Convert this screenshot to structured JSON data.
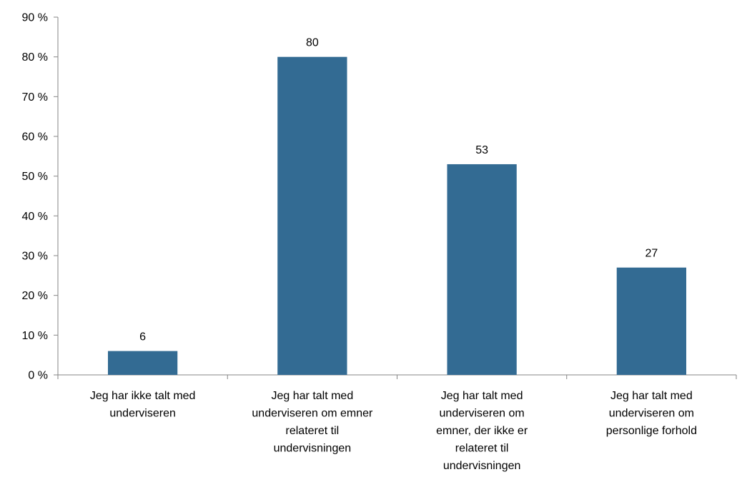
{
  "chart_data": {
    "type": "bar",
    "categories": [
      [
        "Jeg har ikke talt med",
        "underviseren"
      ],
      [
        "Jeg har talt med",
        "underviseren om emner",
        "relateret til",
        "undervisningen"
      ],
      [
        "Jeg har talt med",
        "underviseren om",
        "emner, der ikke er",
        "relateret til",
        "undervisningen"
      ],
      [
        "Jeg har talt med",
        "underviseren om",
        "personlige forhold"
      ]
    ],
    "values": [
      6,
      80,
      53,
      27
    ],
    "data_labels": [
      "6",
      "80",
      "53",
      "27"
    ],
    "yticks": [
      0,
      10,
      20,
      30,
      40,
      50,
      60,
      70,
      80,
      90
    ],
    "ytick_labels": [
      "0 %",
      "10 %",
      "20 %",
      "30 %",
      "40 %",
      "50 %",
      "60 %",
      "70 %",
      "80 %",
      "90 %"
    ],
    "ylim": [
      0,
      90
    ],
    "grid": false,
    "bar_color": "#336b93",
    "axis_color": "#868686"
  }
}
